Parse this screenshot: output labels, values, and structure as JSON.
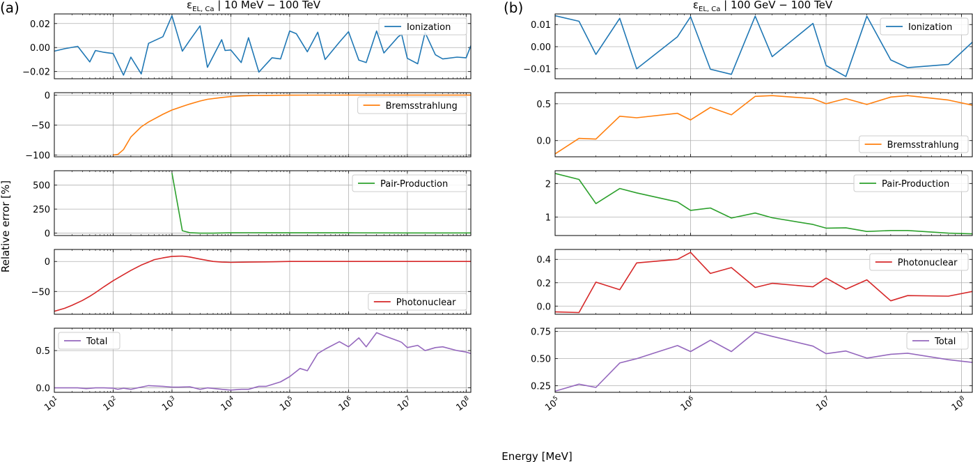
{
  "figure": {
    "ylabel": "Relative error [%]",
    "xlabel": "Energy [MeV]",
    "colors": {
      "ionization": "#1f77b4",
      "bremsstrahlung": "#ff7f0e",
      "pair_production": "#2ca02c",
      "photonuclear": "#d62728",
      "total": "#9467bd",
      "grid": "#b0b0b0",
      "axis": "#000000"
    }
  },
  "chart_data": [
    {
      "panel": "(a)",
      "type": "line",
      "title": "εEL, Ca | 10 MeV − 100 TeV",
      "title_main": "ε",
      "title_sub": "EL, Ca",
      "title_rest": " | 10 MeV − 100 TeV",
      "xscale": "log",
      "xlim": [
        10,
        120000000
      ],
      "xticks": [
        10,
        100,
        1000,
        10000,
        100000,
        1000000,
        10000000,
        100000000
      ],
      "xticklabels": [
        "10^1",
        "10^2",
        "10^3",
        "10^4",
        "10^5",
        "10^6",
        "10^7",
        "10^8"
      ],
      "xlabel": "Energy [MeV]",
      "subplots": [
        {
          "name": "Ionization",
          "color": "#1f77b4",
          "legend": "top-right",
          "ylim": [
            -0.026,
            0.028
          ],
          "yticks": [
            -0.02,
            0.0,
            0.02
          ],
          "yticklabels": [
            "−0.02",
            "0.00",
            "0.02"
          ],
          "x": [
            10,
            15,
            25,
            40,
            50,
            70,
            100,
            150,
            200,
            300,
            400,
            700,
            1000,
            1500,
            2000,
            3000,
            4000,
            7000,
            8000,
            10000,
            15000,
            20000,
            30000,
            50000,
            70000,
            100000,
            130000,
            200000,
            300000,
            400000,
            700000,
            1000000,
            1500000,
            2000000,
            3000000,
            4000000,
            7000000,
            8000000,
            10000000,
            15000000,
            20000000,
            30000000,
            40000000,
            70000000,
            100000000,
            120000000
          ],
          "y": [
            -0.003,
            -0.001,
            0.001,
            -0.012,
            -0.0025,
            -0.004,
            -0.005,
            -0.023,
            -0.008,
            -0.022,
            0.0035,
            0.009,
            0.0265,
            -0.003,
            0.006,
            0.018,
            -0.0165,
            0.0065,
            -0.0025,
            -0.002,
            -0.0125,
            0.0082,
            -0.0205,
            -0.0085,
            -0.0095,
            0.0138,
            0.0115,
            -0.0035,
            0.0128,
            -0.01,
            0.0045,
            0.0132,
            -0.0105,
            -0.0125,
            0.0138,
            -0.0045,
            0.009,
            0.011,
            -0.009,
            -0.0135,
            0.0125,
            -0.006,
            -0.0095,
            -0.008,
            -0.0085,
            0.0015
          ]
        },
        {
          "name": "Bremsstrahlung",
          "color": "#ff7f0e",
          "legend": "top-right",
          "ylim": [
            -103,
            4
          ],
          "yticks": [
            -100,
            -50,
            0
          ],
          "yticklabels": [
            "−100",
            "−50",
            "0"
          ],
          "x": [
            100,
            120,
            150,
            200,
            300,
            400,
            700,
            1000,
            1500,
            2000,
            3000,
            4000,
            7000,
            10000,
            15000,
            20000,
            30000,
            50000,
            100000,
            200000,
            500000,
            1000000,
            10000000,
            100000000,
            120000000
          ],
          "y": [
            -100,
            -99,
            -91,
            -70,
            -53,
            -45,
            -32,
            -25,
            -19,
            -15,
            -10,
            -7,
            -4,
            -2.5,
            -1.5,
            -1,
            -0.6,
            -0.4,
            -0.2,
            -0.1,
            -0.05,
            0,
            0,
            0,
            0
          ]
        },
        {
          "name": "Pair-Production",
          "color": "#2ca02c",
          "legend": "top-right",
          "ylim": [
            -25,
            650
          ],
          "yticks": [
            0,
            250,
            500
          ],
          "yticklabels": [
            "0",
            "250",
            "500"
          ],
          "x": [
            1000,
            1500,
            2000,
            3000,
            5000,
            10000,
            20000,
            100000,
            1000000,
            10000000,
            100000000,
            120000000
          ],
          "y": [
            625,
            25,
            5,
            0,
            0,
            3,
            4,
            3,
            3,
            2,
            2,
            2
          ]
        },
        {
          "name": "Photonuclear",
          "color": "#d62728",
          "legend": "bottom-right",
          "ylim": [
            -88,
            20
          ],
          "yticks": [
            -50,
            0
          ],
          "yticklabels": [
            "−50",
            "0"
          ],
          "x": [
            10,
            15,
            20,
            30,
            40,
            50,
            70,
            100,
            150,
            200,
            300,
            400,
            500,
            700,
            1000,
            1500,
            2000,
            3000,
            5000,
            7000,
            10000,
            20000,
            50000,
            100000,
            1000000,
            10000000,
            100000000,
            120000000
          ],
          "y": [
            -83,
            -78,
            -73,
            -65,
            -58,
            -52,
            -42,
            -32,
            -22,
            -15,
            -6,
            -1,
            3,
            6,
            8.5,
            9,
            7.5,
            4,
            0,
            -1,
            -1.5,
            -1,
            -0.5,
            0,
            0,
            0,
            0,
            0
          ]
        },
        {
          "name": "Total",
          "color": "#9467bd",
          "legend": "top-left",
          "ylim": [
            -0.06,
            0.8
          ],
          "yticks": [
            0.0,
            0.5
          ],
          "yticklabels": [
            "0.0",
            "0.5"
          ],
          "x": [
            10,
            15,
            25,
            35,
            50,
            70,
            100,
            120,
            150,
            200,
            300,
            400,
            700,
            1000,
            1300,
            2000,
            3000,
            4000,
            7000,
            10000,
            15000,
            20000,
            30000,
            40000,
            70000,
            100000,
            150000,
            200000,
            300000,
            400000,
            700000,
            1000000,
            1500000,
            2000000,
            3000000,
            4000000,
            7000000,
            8000000,
            10000000,
            15000000,
            20000000,
            30000000,
            40000000,
            70000000,
            100000000,
            120000000
          ],
          "y": [
            0,
            0,
            0,
            -0.01,
            0,
            0,
            -0.005,
            -0.02,
            -0.005,
            -0.02,
            0.01,
            0.03,
            0.02,
            0.01,
            0.01,
            0.015,
            -0.02,
            0,
            -0.02,
            -0.03,
            -0.02,
            -0.02,
            0.02,
            0.02,
            0.08,
            0.15,
            0.26,
            0.23,
            0.46,
            0.52,
            0.62,
            0.55,
            0.67,
            0.55,
            0.74,
            0.7,
            0.63,
            0.61,
            0.54,
            0.57,
            0.5,
            0.54,
            0.55,
            0.5,
            0.48,
            0.46
          ]
        }
      ]
    },
    {
      "panel": "(b)",
      "type": "line",
      "title": "εEL, Ca | 100 GeV − 100 TeV",
      "title_main": "ε",
      "title_sub": "EL, Ca",
      "title_rest": " | 100 GeV − 100 TeV",
      "xscale": "log",
      "xlim": [
        100000,
        120000000
      ],
      "xticks": [
        100000,
        1000000,
        10000000,
        100000000
      ],
      "xticklabels": [
        "10^5",
        "10^6",
        "10^7",
        "10^8"
      ],
      "xlabel": "Energy [MeV]",
      "subplots": [
        {
          "name": "Ionization",
          "color": "#1f77b4",
          "legend": "top-right",
          "ylim": [
            -0.0145,
            0.0148
          ],
          "yticks": [
            -0.01,
            0.0,
            0.01
          ],
          "yticklabels": [
            "−0.01",
            "0.00",
            "0.01"
          ],
          "x": [
            100000,
            150000,
            200000,
            300000,
            400000,
            800000,
            1000000,
            1400000,
            2000000,
            3000000,
            4000000,
            8000000,
            10000000,
            14000000,
            20000000,
            30000000,
            40000000,
            80000000,
            120000000
          ],
          "y": [
            0.014,
            0.0115,
            -0.0035,
            0.0128,
            -0.01,
            0.0045,
            0.0135,
            -0.0102,
            -0.0125,
            0.0138,
            -0.0045,
            0.0105,
            -0.0085,
            -0.0135,
            0.0138,
            -0.006,
            -0.0095,
            -0.008,
            0.002
          ]
        },
        {
          "name": "Bremsstrahlung",
          "color": "#ff7f0e",
          "legend": "bottom-right",
          "ylim": [
            -0.22,
            0.65
          ],
          "yticks": [
            0.0,
            0.5
          ],
          "yticklabels": [
            "0.0",
            "0.5"
          ],
          "x": [
            100000,
            150000,
            200000,
            300000,
            400000,
            800000,
            1000000,
            1400000,
            2000000,
            3000000,
            4000000,
            8000000,
            10000000,
            14000000,
            20000000,
            30000000,
            40000000,
            80000000,
            120000000
          ],
          "y": [
            -0.18,
            0.03,
            0.02,
            0.33,
            0.31,
            0.37,
            0.28,
            0.45,
            0.35,
            0.6,
            0.61,
            0.57,
            0.5,
            0.57,
            0.49,
            0.59,
            0.61,
            0.55,
            0.48
          ]
        },
        {
          "name": "Pair-Production",
          "color": "#2ca02c",
          "legend": "top-right",
          "ylim": [
            0.45,
            2.38
          ],
          "yticks": [
            1,
            2
          ],
          "yticklabels": [
            "1",
            "2"
          ],
          "x": [
            100000,
            150000,
            200000,
            300000,
            400000,
            800000,
            1000000,
            1400000,
            2000000,
            3000000,
            4000000,
            8000000,
            10000000,
            14000000,
            20000000,
            30000000,
            40000000,
            80000000,
            120000000
          ],
          "y": [
            2.3,
            2.12,
            1.4,
            1.85,
            1.72,
            1.45,
            1.2,
            1.27,
            0.97,
            1.12,
            0.98,
            0.78,
            0.67,
            0.68,
            0.57,
            0.6,
            0.6,
            0.52,
            0.5
          ]
        },
        {
          "name": "Photonuclear",
          "color": "#d62728",
          "legend": "top-right",
          "ylim": [
            -0.07,
            0.485
          ],
          "yticks": [
            0.0,
            0.2,
            0.4
          ],
          "yticklabels": [
            "0.0",
            "0.2",
            "0.4"
          ],
          "x": [
            100000,
            150000,
            200000,
            300000,
            400000,
            800000,
            1000000,
            1400000,
            2000000,
            3000000,
            4000000,
            8000000,
            10000000,
            14000000,
            20000000,
            30000000,
            40000000,
            80000000,
            120000000
          ],
          "y": [
            -0.05,
            -0.055,
            0.205,
            0.14,
            0.37,
            0.4,
            0.46,
            0.28,
            0.33,
            0.16,
            0.195,
            0.165,
            0.24,
            0.145,
            0.225,
            0.045,
            0.09,
            0.085,
            0.125
          ]
        },
        {
          "name": "Total",
          "color": "#9467bd",
          "legend": "top-right",
          "ylim": [
            0.19,
            0.78
          ],
          "yticks": [
            0.25,
            0.5,
            0.75
          ],
          "yticklabels": [
            "0.25",
            "0.50",
            "0.75"
          ],
          "x": [
            100000,
            150000,
            200000,
            300000,
            400000,
            800000,
            1000000,
            1400000,
            2000000,
            3000000,
            4000000,
            8000000,
            10000000,
            14000000,
            20000000,
            30000000,
            40000000,
            80000000,
            120000000
          ],
          "y": [
            0.2,
            0.265,
            0.235,
            0.46,
            0.5,
            0.62,
            0.565,
            0.67,
            0.565,
            0.745,
            0.705,
            0.615,
            0.545,
            0.57,
            0.505,
            0.54,
            0.55,
            0.49,
            0.465
          ]
        }
      ]
    }
  ]
}
